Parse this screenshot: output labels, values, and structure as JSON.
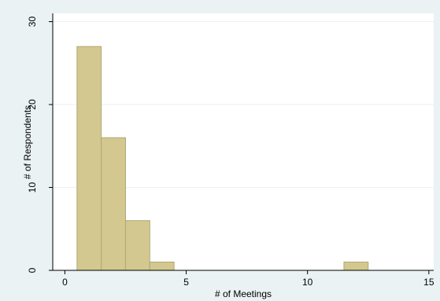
{
  "chart_data": {
    "type": "bar",
    "subtype": "histogram",
    "xlabel": "# of Meetings",
    "ylabel": "# of Respondents",
    "xlim": [
      -0.5,
      15.2
    ],
    "ylim": [
      0,
      31
    ],
    "xticks": [
      0,
      5,
      10,
      15
    ],
    "yticks": [
      0,
      10,
      20,
      30
    ],
    "bin_width": 1,
    "bins": [
      {
        "start": 0.5,
        "end": 1.5,
        "value": 27
      },
      {
        "start": 1.5,
        "end": 2.5,
        "value": 16
      },
      {
        "start": 2.5,
        "end": 3.5,
        "value": 6
      },
      {
        "start": 3.5,
        "end": 4.5,
        "value": 1
      },
      {
        "start": 11.5,
        "end": 12.5,
        "value": 1
      }
    ],
    "grid": true,
    "colors": {
      "bar_fill": "#d3c88f",
      "bar_stroke": "#b2a775",
      "plot_background": "#ffffff",
      "outer_background": "#eaf2f3",
      "gridline": "#eaf2f3",
      "axis": "#000000"
    }
  }
}
